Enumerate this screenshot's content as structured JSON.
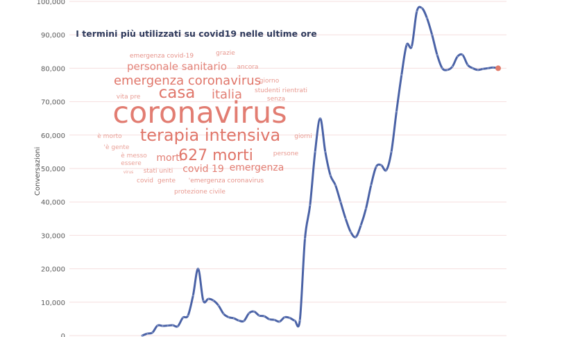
{
  "chart_data": {
    "type": "line",
    "title": "I termini più utilizzati su covid19 nelle ultime ore",
    "xlabel": "",
    "ylabel": "Conversazioni",
    "ylim": [
      0,
      100000
    ],
    "yticks": [
      "0",
      "10,000",
      "20,000",
      "30,000",
      "40,000",
      "50,000",
      "60,000",
      "70,000",
      "80,000",
      "90,000",
      "100,000"
    ],
    "grid": true,
    "line_color": "#4a62a6",
    "end_marker_color": "#e07a6a",
    "series": [
      {
        "x": [
          0,
          1,
          2,
          3,
          4,
          5,
          6,
          7,
          8,
          9,
          10,
          11,
          12,
          13,
          14,
          15,
          16,
          17,
          18,
          19,
          20,
          21,
          22,
          23,
          24,
          25,
          26,
          27,
          28,
          29,
          30,
          31,
          32,
          33,
          34,
          35,
          36,
          37,
          38,
          39,
          40,
          41,
          42,
          43,
          44,
          45,
          46,
          47,
          48,
          49,
          50,
          51,
          52,
          53,
          54,
          55,
          56,
          57,
          58,
          59,
          60,
          61,
          62,
          63,
          64,
          65,
          66,
          67,
          68,
          69,
          70,
          71,
          72,
          73,
          74,
          75,
          76,
          77,
          78,
          79,
          80,
          81,
          82,
          83,
          84,
          85,
          86,
          87,
          88,
          89,
          90,
          91,
          92,
          93,
          94
        ],
        "values": [
          0,
          600,
          900,
          3000,
          2900,
          3000,
          3100,
          2800,
          5400,
          6000,
          12000,
          20000,
          10500,
          11000,
          10500,
          9000,
          6500,
          5500,
          5200,
          4500,
          4400,
          6700,
          7200,
          6000,
          5800,
          4900,
          4700,
          4200,
          5500,
          5300,
          4500,
          4600,
          29000,
          39000,
          55000,
          65000,
          55000,
          48000,
          45000,
          40000,
          35000,
          31000,
          29500,
          33000,
          38000,
          45000,
          50500,
          51000,
          49500,
          55000,
          67000,
          78000,
          87000,
          86500,
          97000,
          98000,
          95000,
          90000,
          84000,
          80000,
          79500,
          80500,
          83500,
          84000,
          81000,
          80000,
          79500,
          79800,
          80000,
          80200,
          80000,
          80000,
          80000,
          80000,
          80000,
          80000,
          80000,
          80000,
          80000,
          80000,
          80000,
          80000,
          80000,
          80000,
          80000,
          80000,
          80000,
          80000,
          80000,
          80000,
          80000,
          80000,
          80000,
          80000,
          80000
        ]
      }
    ]
  },
  "wordcloud": {
    "color": "#e0766a",
    "words": [
      {
        "text": "emergenza covid-19",
        "weight": 2
      },
      {
        "text": "grazie",
        "weight": 2
      },
      {
        "text": "personale sanitario",
        "weight": 5
      },
      {
        "text": "ancora",
        "weight": 2
      },
      {
        "text": "emergenza coronavirus",
        "weight": 6
      },
      {
        "text": "giorno",
        "weight": 2
      },
      {
        "text": "casa",
        "weight": 9
      },
      {
        "text": "italia",
        "weight": 6
      },
      {
        "text": "studenti rientrati",
        "weight": 2
      },
      {
        "text": "vita pre",
        "weight": 2
      },
      {
        "text": "senza",
        "weight": 2
      },
      {
        "text": "coronavirus",
        "weight": 12
      },
      {
        "text": "è morto",
        "weight": 2
      },
      {
        "text": "terapia intensiva",
        "weight": 8
      },
      {
        "text": "giorni",
        "weight": 2
      },
      {
        "text": "'è gente",
        "weight": 2
      },
      {
        "text": "persone",
        "weight": 2
      },
      {
        "text": "è messo",
        "weight": 2
      },
      {
        "text": "627 morti",
        "weight": 8
      },
      {
        "text": "morti",
        "weight": 5
      },
      {
        "text": "essere",
        "weight": 2
      },
      {
        "text": "virus",
        "weight": 1
      },
      {
        "text": "stati uniti",
        "weight": 2
      },
      {
        "text": "covid 19",
        "weight": 5
      },
      {
        "text": "emergenza",
        "weight": 5
      },
      {
        "text": "covid",
        "weight": 2
      },
      {
        "text": "gente",
        "weight": 2
      },
      {
        "text": "'emergenza coronavirus",
        "weight": 2
      },
      {
        "text": "protezione civile",
        "weight": 2
      }
    ]
  }
}
